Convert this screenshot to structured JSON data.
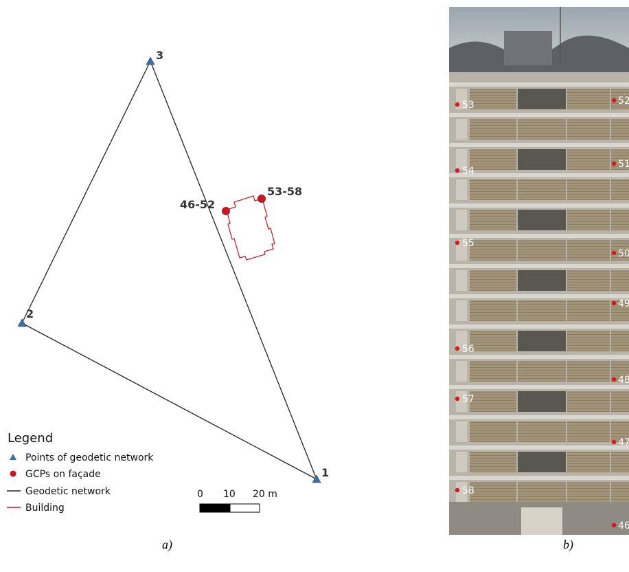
{
  "network_points": [
    {
      "id": "1",
      "label": "1"
    },
    {
      "id": "2",
      "label": "2"
    },
    {
      "id": "3",
      "label": "3"
    }
  ],
  "gcp_groups": [
    {
      "id": "46-52",
      "label": "46-52"
    },
    {
      "id": "53-58",
      "label": "53-58"
    }
  ],
  "legend": {
    "title": "Legend",
    "items": [
      {
        "label": "Points of geodetic network",
        "symbol": "triangle",
        "color": "#3a6fa8"
      },
      {
        "label": "GCPs on façade",
        "symbol": "circle",
        "color": "#d1141b"
      },
      {
        "label": "Geodetic network",
        "symbol": "line",
        "color": "#222222"
      },
      {
        "label": "Building",
        "symbol": "line",
        "color": "#d1141b"
      }
    ]
  },
  "scale_bar": {
    "ticks": [
      "0",
      "10",
      "20 m"
    ]
  },
  "facade_gcps": {
    "left": [
      "53",
      "54",
      "55",
      "56",
      "57",
      "58"
    ],
    "right": [
      "52",
      "51",
      "50",
      "49",
      "48",
      "47",
      "46"
    ]
  },
  "captions": {
    "a": "a)",
    "b": "b)"
  },
  "colors": {
    "network_line": "#222222",
    "building": "#d1141b",
    "gcp": "#d1141b",
    "triangle": "#3a6fa8"
  }
}
